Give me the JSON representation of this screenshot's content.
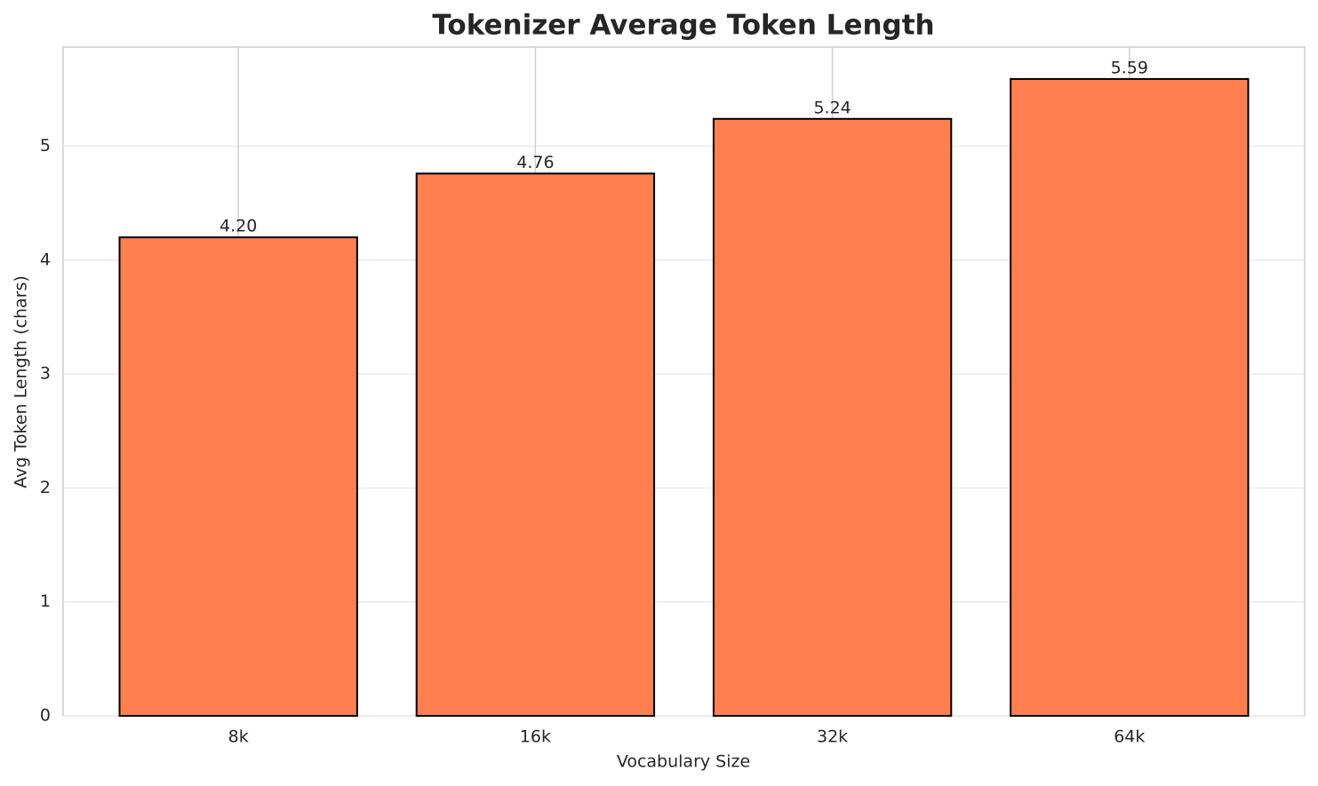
{
  "chart_data": {
    "type": "bar",
    "title": "Tokenizer Average Token Length",
    "x_label": "Vocabulary Size",
    "y_label": "Avg Token Length (chars)",
    "categories": [
      "8k",
      "16k",
      "32k",
      "64k"
    ],
    "values": [
      4.2,
      4.76,
      5.24,
      5.59
    ],
    "value_labels": [
      "4.20",
      "4.76",
      "5.24",
      "5.59"
    ],
    "color": "#ff7f50",
    "edge_color": "#000000",
    "ylim": [
      0,
      5.87
    ],
    "yticks": [
      0,
      1,
      2,
      3,
      4,
      5
    ],
    "grid": true
  }
}
